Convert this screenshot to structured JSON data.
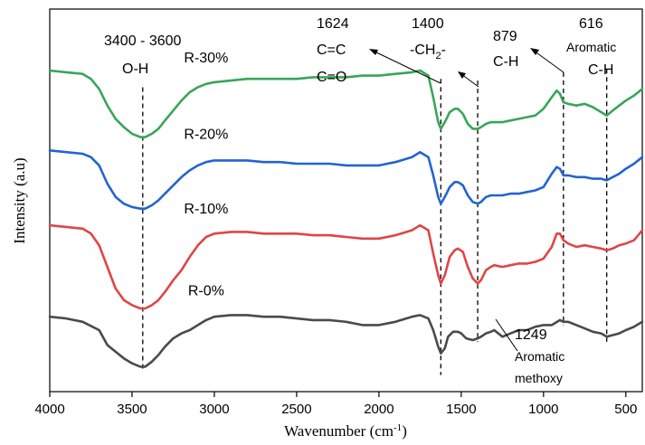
{
  "chart_data": {
    "type": "line",
    "title": "",
    "xlabel": "Wavenumber (cm",
    "xlabel_sup": "-1",
    "xlabel_end": ")",
    "ylabel": "Intensity (a.u)",
    "xlim": [
      4000,
      400
    ],
    "x_reversed": true,
    "x_ticks": [
      4000,
      3500,
      3000,
      2500,
      2000,
      1500,
      1000,
      500
    ],
    "x_tick_labels": [
      "4000",
      "3500",
      "3000",
      "2500",
      "2000",
      "1500",
      "1000",
      "500"
    ],
    "y_ticks_shown": false,
    "grid": false,
    "series": [
      {
        "name": "R-0%",
        "color": "#4a4a4a",
        "points": [
          [
            4000,
            0.3
          ],
          [
            3900,
            0.29
          ],
          [
            3800,
            0.27
          ],
          [
            3700,
            0.22
          ],
          [
            3650,
            0.13
          ],
          [
            3600,
            0.09
          ],
          [
            3550,
            0.05
          ],
          [
            3500,
            0.02
          ],
          [
            3450,
            0.0
          ],
          [
            3420,
            0.0
          ],
          [
            3380,
            0.03
          ],
          [
            3340,
            0.07
          ],
          [
            3300,
            0.12
          ],
          [
            3250,
            0.17
          ],
          [
            3200,
            0.2
          ],
          [
            3150,
            0.22
          ],
          [
            3100,
            0.25
          ],
          [
            3050,
            0.28
          ],
          [
            3000,
            0.3
          ],
          [
            2900,
            0.31
          ],
          [
            2800,
            0.31
          ],
          [
            2700,
            0.3
          ],
          [
            2600,
            0.3
          ],
          [
            2500,
            0.29
          ],
          [
            2400,
            0.28
          ],
          [
            2300,
            0.28
          ],
          [
            2200,
            0.27
          ],
          [
            2100,
            0.25
          ],
          [
            2000,
            0.25
          ],
          [
            1900,
            0.27
          ],
          [
            1800,
            0.3
          ],
          [
            1750,
            0.31
          ],
          [
            1700,
            0.29
          ],
          [
            1670,
            0.22
          ],
          [
            1640,
            0.12
          ],
          [
            1624,
            0.08
          ],
          [
            1600,
            0.11
          ],
          [
            1580,
            0.18
          ],
          [
            1550,
            0.21
          ],
          [
            1520,
            0.21
          ],
          [
            1500,
            0.2
          ],
          [
            1470,
            0.17
          ],
          [
            1430,
            0.16
          ],
          [
            1400,
            0.17
          ],
          [
            1380,
            0.18
          ],
          [
            1350,
            0.2
          ],
          [
            1320,
            0.21
          ],
          [
            1300,
            0.22
          ],
          [
            1249,
            0.18
          ],
          [
            1200,
            0.2
          ],
          [
            1150,
            0.22
          ],
          [
            1100,
            0.22
          ],
          [
            1050,
            0.24
          ],
          [
            1000,
            0.25
          ],
          [
            950,
            0.25
          ],
          [
            900,
            0.28
          ],
          [
            879,
            0.27
          ],
          [
            850,
            0.27
          ],
          [
            800,
            0.25
          ],
          [
            750,
            0.23
          ],
          [
            700,
            0.21
          ],
          [
            650,
            0.2
          ],
          [
            616,
            0.18
          ],
          [
            580,
            0.19
          ],
          [
            540,
            0.2
          ],
          [
            500,
            0.22
          ],
          [
            450,
            0.24
          ],
          [
            400,
            0.27
          ]
        ]
      },
      {
        "name": "R-10%",
        "color": "#e04545",
        "points": [
          [
            4000,
            0.85
          ],
          [
            3900,
            0.84
          ],
          [
            3800,
            0.83
          ],
          [
            3750,
            0.8
          ],
          [
            3700,
            0.73
          ],
          [
            3650,
            0.6
          ],
          [
            3600,
            0.47
          ],
          [
            3550,
            0.4
          ],
          [
            3500,
            0.37
          ],
          [
            3450,
            0.35
          ],
          [
            3420,
            0.35
          ],
          [
            3380,
            0.37
          ],
          [
            3340,
            0.4
          ],
          [
            3300,
            0.45
          ],
          [
            3250,
            0.52
          ],
          [
            3200,
            0.58
          ],
          [
            3150,
            0.66
          ],
          [
            3100,
            0.73
          ],
          [
            3050,
            0.78
          ],
          [
            3000,
            0.8
          ],
          [
            2900,
            0.81
          ],
          [
            2800,
            0.81
          ],
          [
            2700,
            0.8
          ],
          [
            2600,
            0.8
          ],
          [
            2500,
            0.8
          ],
          [
            2400,
            0.79
          ],
          [
            2300,
            0.79
          ],
          [
            2200,
            0.78
          ],
          [
            2100,
            0.77
          ],
          [
            2000,
            0.77
          ],
          [
            1900,
            0.79
          ],
          [
            1800,
            0.82
          ],
          [
            1750,
            0.85
          ],
          [
            1700,
            0.82
          ],
          [
            1670,
            0.68
          ],
          [
            1640,
            0.55
          ],
          [
            1624,
            0.5
          ],
          [
            1600,
            0.55
          ],
          [
            1570,
            0.66
          ],
          [
            1540,
            0.7
          ],
          [
            1520,
            0.71
          ],
          [
            1490,
            0.69
          ],
          [
            1460,
            0.6
          ],
          [
            1430,
            0.53
          ],
          [
            1400,
            0.5
          ],
          [
            1380,
            0.52
          ],
          [
            1350,
            0.58
          ],
          [
            1320,
            0.6
          ],
          [
            1300,
            0.61
          ],
          [
            1250,
            0.6
          ],
          [
            1200,
            0.61
          ],
          [
            1150,
            0.62
          ],
          [
            1100,
            0.62
          ],
          [
            1050,
            0.63
          ],
          [
            1000,
            0.65
          ],
          [
            950,
            0.72
          ],
          [
            920,
            0.8
          ],
          [
            900,
            0.8
          ],
          [
            879,
            0.76
          ],
          [
            850,
            0.74
          ],
          [
            800,
            0.72
          ],
          [
            750,
            0.73
          ],
          [
            700,
            0.72
          ],
          [
            650,
            0.71
          ],
          [
            616,
            0.7
          ],
          [
            580,
            0.71
          ],
          [
            540,
            0.73
          ],
          [
            500,
            0.74
          ],
          [
            450,
            0.76
          ],
          [
            400,
            0.82
          ]
        ]
      },
      {
        "name": "R-20%",
        "color": "#2264d1",
        "points": [
          [
            4000,
            1.3
          ],
          [
            3900,
            1.29
          ],
          [
            3800,
            1.28
          ],
          [
            3750,
            1.26
          ],
          [
            3700,
            1.21
          ],
          [
            3650,
            1.1
          ],
          [
            3600,
            1.02
          ],
          [
            3550,
            0.98
          ],
          [
            3500,
            0.96
          ],
          [
            3450,
            0.95
          ],
          [
            3420,
            0.95
          ],
          [
            3380,
            0.97
          ],
          [
            3340,
            1.0
          ],
          [
            3300,
            1.04
          ],
          [
            3250,
            1.09
          ],
          [
            3200,
            1.14
          ],
          [
            3150,
            1.18
          ],
          [
            3100,
            1.21
          ],
          [
            3050,
            1.23
          ],
          [
            3000,
            1.24
          ],
          [
            2900,
            1.24
          ],
          [
            2800,
            1.24
          ],
          [
            2700,
            1.23
          ],
          [
            2600,
            1.23
          ],
          [
            2500,
            1.22
          ],
          [
            2400,
            1.22
          ],
          [
            2300,
            1.22
          ],
          [
            2200,
            1.21
          ],
          [
            2100,
            1.21
          ],
          [
            2000,
            1.21
          ],
          [
            1900,
            1.23
          ],
          [
            1800,
            1.26
          ],
          [
            1750,
            1.29
          ],
          [
            1700,
            1.26
          ],
          [
            1670,
            1.15
          ],
          [
            1640,
            1.02
          ],
          [
            1624,
            0.98
          ],
          [
            1600,
            1.02
          ],
          [
            1570,
            1.08
          ],
          [
            1540,
            1.11
          ],
          [
            1520,
            1.11
          ],
          [
            1490,
            1.09
          ],
          [
            1460,
            1.03
          ],
          [
            1430,
            0.99
          ],
          [
            1400,
            0.98
          ],
          [
            1380,
            0.99
          ],
          [
            1350,
            1.02
          ],
          [
            1320,
            1.03
          ],
          [
            1300,
            1.03
          ],
          [
            1250,
            1.03
          ],
          [
            1200,
            1.04
          ],
          [
            1150,
            1.04
          ],
          [
            1100,
            1.05
          ],
          [
            1050,
            1.06
          ],
          [
            1000,
            1.08
          ],
          [
            950,
            1.16
          ],
          [
            920,
            1.2
          ],
          [
            900,
            1.19
          ],
          [
            879,
            1.15
          ],
          [
            850,
            1.15
          ],
          [
            800,
            1.14
          ],
          [
            750,
            1.14
          ],
          [
            700,
            1.13
          ],
          [
            650,
            1.13
          ],
          [
            616,
            1.12
          ],
          [
            580,
            1.14
          ],
          [
            540,
            1.16
          ],
          [
            500,
            1.19
          ],
          [
            450,
            1.22
          ],
          [
            400,
            1.26
          ]
        ]
      },
      {
        "name": "R-30%",
        "color": "#3aa55a",
        "points": [
          [
            4000,
            1.78
          ],
          [
            3900,
            1.77
          ],
          [
            3800,
            1.76
          ],
          [
            3750,
            1.73
          ],
          [
            3700,
            1.67
          ],
          [
            3650,
            1.57
          ],
          [
            3600,
            1.49
          ],
          [
            3550,
            1.44
          ],
          [
            3500,
            1.4
          ],
          [
            3450,
            1.38
          ],
          [
            3420,
            1.38
          ],
          [
            3380,
            1.4
          ],
          [
            3340,
            1.43
          ],
          [
            3300,
            1.48
          ],
          [
            3250,
            1.54
          ],
          [
            3200,
            1.6
          ],
          [
            3150,
            1.65
          ],
          [
            3100,
            1.68
          ],
          [
            3050,
            1.7
          ],
          [
            3000,
            1.71
          ],
          [
            2900,
            1.72
          ],
          [
            2800,
            1.73
          ],
          [
            2700,
            1.73
          ],
          [
            2600,
            1.73
          ],
          [
            2500,
            1.73
          ],
          [
            2400,
            1.74
          ],
          [
            2300,
            1.74
          ],
          [
            2200,
            1.74
          ],
          [
            2100,
            1.75
          ],
          [
            2000,
            1.75
          ],
          [
            1900,
            1.76
          ],
          [
            1800,
            1.77
          ],
          [
            1750,
            1.78
          ],
          [
            1700,
            1.75
          ],
          [
            1670,
            1.62
          ],
          [
            1640,
            1.47
          ],
          [
            1624,
            1.43
          ],
          [
            1600,
            1.47
          ],
          [
            1570,
            1.53
          ],
          [
            1540,
            1.55
          ],
          [
            1520,
            1.55
          ],
          [
            1490,
            1.52
          ],
          [
            1460,
            1.46
          ],
          [
            1430,
            1.43
          ],
          [
            1400,
            1.43
          ],
          [
            1380,
            1.44
          ],
          [
            1350,
            1.46
          ],
          [
            1320,
            1.47
          ],
          [
            1300,
            1.47
          ],
          [
            1250,
            1.47
          ],
          [
            1200,
            1.48
          ],
          [
            1150,
            1.49
          ],
          [
            1100,
            1.5
          ],
          [
            1050,
            1.51
          ],
          [
            1000,
            1.55
          ],
          [
            950,
            1.62
          ],
          [
            920,
            1.66
          ],
          [
            900,
            1.64
          ],
          [
            879,
            1.59
          ],
          [
            850,
            1.58
          ],
          [
            800,
            1.57
          ],
          [
            750,
            1.58
          ],
          [
            700,
            1.56
          ],
          [
            650,
            1.53
          ],
          [
            616,
            1.51
          ],
          [
            580,
            1.54
          ],
          [
            540,
            1.57
          ],
          [
            500,
            1.6
          ],
          [
            450,
            1.63
          ],
          [
            400,
            1.67
          ]
        ]
      }
    ],
    "series_labels": [
      {
        "text": "R-30%",
        "x": 3050,
        "y": 1.83
      },
      {
        "text": "R-20%",
        "x": 3050,
        "y": 1.37
      },
      {
        "text": "R-10%",
        "x": 3050,
        "y": 0.92
      },
      {
        "text": "R-0%",
        "x": 3050,
        "y": 0.43
      }
    ],
    "peak_lines": [
      {
        "x": 3435,
        "y_top": 1.68,
        "y_bottom": -0.02
      },
      {
        "x": 1624,
        "y_top": 1.73,
        "y_bottom": -0.05
      },
      {
        "x": 1400,
        "y_top": 1.72,
        "y_bottom": 0.15
      },
      {
        "x": 879,
        "y_top": 1.77,
        "y_bottom": 0.25
      },
      {
        "x": 616,
        "y_top": 1.79,
        "y_bottom": 0.15
      }
    ],
    "annotations": [
      {
        "lines": [
          "3400 - 3600",
          "O-H"
        ]
      },
      {
        "lines": [
          "1624",
          "C=C",
          "C=O"
        ]
      },
      {
        "lines": [
          "1400",
          "-CH"
        ],
        "sub": "2",
        "tail": "-"
      },
      {
        "lines": [
          "879",
          "C-H"
        ]
      },
      {
        "lines": [
          "616",
          "Aromatic",
          "C-H"
        ]
      },
      {
        "lines": [
          "1249",
          "Aromatic",
          "methoxy"
        ]
      }
    ]
  }
}
